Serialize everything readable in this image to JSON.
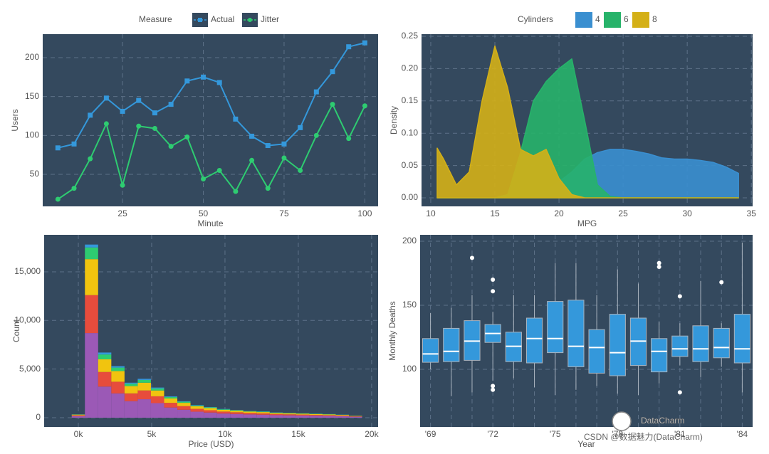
{
  "chart_data": [
    {
      "type": "line",
      "x_label": "Minute",
      "y_label": "Users",
      "legend_title": "Measure",
      "x": [
        5,
        10,
        15,
        20,
        25,
        30,
        35,
        40,
        45,
        50,
        55,
        60,
        65,
        70,
        75,
        80,
        85,
        90,
        95,
        100
      ],
      "series": [
        {
          "name": "Actual",
          "color": "#3498db",
          "marker": "square",
          "values": [
            84,
            89,
            126,
            148,
            131,
            145,
            129,
            140,
            170,
            175,
            168,
            121,
            99,
            87,
            89,
            110,
            156,
            182,
            214,
            219
          ]
        },
        {
          "name": "Jitter",
          "color": "#2ecc71",
          "marker": "circle",
          "values": [
            18,
            32,
            70,
            115,
            36,
            112,
            109,
            86,
            98,
            44,
            55,
            28,
            68,
            32,
            71,
            55,
            100,
            140,
            96,
            138
          ]
        }
      ],
      "xlim": [
        0.3,
        104.1
      ],
      "xticks": [
        25,
        50,
        75,
        100
      ],
      "ylim": [
        8.8,
        230.2
      ],
      "yticks": [
        50,
        100,
        150,
        200
      ],
      "grid": true
    },
    {
      "type": "area",
      "x_label": "MPG",
      "y_label": "Density",
      "legend_title": "Cylinders",
      "x": [
        10.5,
        11,
        12,
        13,
        14,
        15,
        16,
        17,
        18,
        19,
        20,
        21,
        22,
        23,
        24,
        25,
        26,
        27,
        28,
        29,
        30,
        31,
        32,
        33,
        34
      ],
      "series": [
        {
          "name": "4",
          "color": "#3a8fd0",
          "values": [
            0,
            0,
            0,
            0,
            0,
            0,
            0,
            0,
            0.002,
            0.01,
            0.025,
            0.04,
            0.06,
            0.07,
            0.075,
            0.075,
            0.072,
            0.068,
            0.062,
            0.06,
            0.06,
            0.058,
            0.055,
            0.048,
            0.038
          ]
        },
        {
          "name": "6",
          "color": "#27b36a",
          "values": [
            0,
            0,
            0,
            0,
            0,
            0,
            0.005,
            0.07,
            0.15,
            0.18,
            0.2,
            0.215,
            0.12,
            0.02,
            0.002,
            0,
            0,
            0,
            0,
            0,
            0,
            0,
            0,
            0,
            0
          ]
        },
        {
          "name": "8",
          "color": "#d4b017",
          "values": [
            0.077,
            0.06,
            0.02,
            0.04,
            0.15,
            0.235,
            0.17,
            0.075,
            0.065,
            0.075,
            0.03,
            0.005,
            0,
            0,
            0,
            0,
            0,
            0,
            0,
            0,
            0,
            0,
            0,
            0,
            0
          ]
        }
      ],
      "xlim": [
        9.28,
        35.1
      ],
      "xticks": [
        10,
        15,
        20,
        25,
        30,
        35
      ],
      "ylim": [
        -0.0132,
        0.2533
      ],
      "yticks": [
        {
          "value": 0,
          "label": "0.00"
        },
        {
          "value": 0.05,
          "label": "0.05"
        },
        {
          "value": 0.1,
          "label": "0.10"
        },
        {
          "value": 0.15,
          "label": "0.15"
        },
        {
          "value": 0.2,
          "label": "0.20"
        },
        {
          "value": 0.25,
          "label": "0.25"
        }
      ],
      "grid": true
    },
    {
      "type": "histogram",
      "x_label": "Price (USD)",
      "y_label": "Count",
      "bins": [
        -450,
        450,
        1350,
        2250,
        3150,
        4050,
        4950,
        5850,
        6750,
        7650,
        8550,
        9450,
        10350,
        11250,
        12150,
        13050,
        13950,
        14850,
        15750,
        16650,
        17550,
        18450,
        19350
      ],
      "series": [
        {
          "color": "#9b59b6",
          "values": [
            170,
            8700,
            3200,
            2500,
            1700,
            1900,
            1500,
            1050,
            820,
            620,
            530,
            430,
            380,
            340,
            310,
            260,
            240,
            220,
            200,
            180,
            150,
            95
          ]
        },
        {
          "color": "#e74c3c",
          "values": [
            80,
            3900,
            1500,
            1200,
            800,
            900,
            700,
            480,
            370,
            290,
            240,
            200,
            180,
            150,
            140,
            120,
            110,
            100,
            90,
            85,
            70,
            45
          ]
        },
        {
          "color": "#f1c40f",
          "values": [
            70,
            3700,
            1300,
            1100,
            750,
            800,
            600,
            450,
            340,
            260,
            220,
            180,
            160,
            140,
            130,
            110,
            100,
            90,
            85,
            75,
            65,
            40
          ]
        },
        {
          "color": "#2ecc71",
          "values": [
            20,
            1200,
            500,
            350,
            250,
            280,
            210,
            150,
            120,
            90,
            80,
            60,
            60,
            50,
            50,
            40,
            35,
            30,
            30,
            30,
            25,
            15
          ]
        },
        {
          "color": "#3498db",
          "values": [
            10,
            300,
            200,
            150,
            100,
            120,
            90,
            70,
            50,
            40,
            30,
            30,
            20,
            20,
            20,
            20,
            15,
            10,
            15,
            10,
            10,
            5
          ]
        }
      ],
      "xlim": [
        -2330,
        20440
      ],
      "xticks": [
        {
          "value": 0,
          "label": "0k"
        },
        {
          "value": 5000,
          "label": "5k"
        },
        {
          "value": 10000,
          "label": "10k"
        },
        {
          "value": 15000,
          "label": "15k"
        },
        {
          "value": 20000,
          "label": "20k"
        }
      ],
      "ylim": [
        -950,
        18800
      ],
      "yticks": [
        0,
        {
          "value": 5000,
          "label": "5,000"
        },
        {
          "value": 10000,
          "label": "10,000"
        },
        {
          "value": 15000,
          "label": "15,000"
        }
      ],
      "grid": true
    },
    {
      "type": "box",
      "x_label": "Year",
      "y_label": "Monthly Deaths",
      "color": "#3498db",
      "categories": [
        "'69",
        null,
        null,
        "'72",
        null,
        null,
        "'75",
        null,
        null,
        "'78",
        null,
        null,
        "'81",
        null,
        null,
        "'84"
      ],
      "low": [
        100,
        79,
        82,
        91,
        93,
        86,
        80,
        84,
        87,
        81,
        80,
        89,
        103,
        94,
        102,
        82
      ],
      "q1": [
        105.5,
        106,
        107,
        121,
        106,
        105,
        113,
        102,
        97,
        95,
        103,
        98,
        110,
        106,
        109,
        105
      ],
      "median": [
        112,
        114,
        122,
        128,
        118,
        124,
        124,
        118,
        117,
        113,
        122,
        114,
        116,
        116,
        117,
        116
      ],
      "q3": [
        124,
        132,
        138,
        135,
        129,
        140,
        153,
        154,
        131,
        143,
        140,
        124,
        126,
        134,
        132,
        143
      ],
      "high": [
        144,
        148,
        158,
        145,
        158,
        158,
        183,
        183,
        158,
        178,
        167,
        137,
        136,
        169,
        136,
        199
      ],
      "outliers": [
        [],
        [],
        [
          187
        ],
        [
          170,
          161,
          87,
          84
        ],
        [],
        [],
        [],
        [],
        [],
        [],
        [],
        [
          183,
          180
        ],
        [
          157,
          82
        ],
        [],
        [
          168
        ],
        []
      ],
      "ylim": [
        55,
        205
      ],
      "yticks": [
        100,
        150,
        200
      ],
      "grid": true
    }
  ],
  "watermark": {
    "brand": "DataCharm",
    "credit": "CSDN @数据魅力(DataCharm)"
  }
}
